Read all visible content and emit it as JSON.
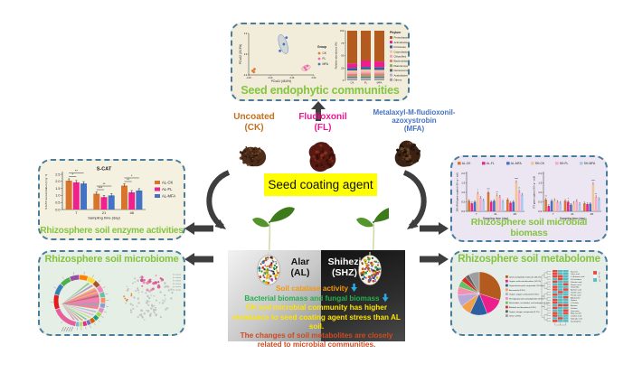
{
  "colors": {
    "title_green": "#85c440",
    "border_dash": "#4a7d9b",
    "down_arrow": "#29abe2",
    "arrow_dark": "#3e3e3e",
    "coating_bg": "#ffff00"
  },
  "panels": {
    "endophytic": {
      "title": "Seed endophytic communities"
    },
    "enzyme": {
      "title": "Rhizosphere soil enzyme activities"
    },
    "microbiome": {
      "title": "Rhizosphere soil microbiome"
    },
    "biomass": {
      "title": "Rhizosphere soil microbial biomass"
    },
    "metabolome": {
      "title": "Rhizosphere soil metabolome"
    }
  },
  "seeds": [
    {
      "label_lines": [
        "Uncoated",
        "(CK)"
      ],
      "color": "#c4701f"
    },
    {
      "label_lines": [
        "Fludioxonil",
        "(FL)"
      ],
      "color": "#ed1690"
    },
    {
      "label_lines": [
        "Metalaxyl-M-fludioxonil-",
        "azoxystrobin",
        "(MFA)"
      ],
      "color": "#4472c4"
    }
  ],
  "center_label": "Seed coating agent",
  "sites": {
    "left": {
      "name": "Alar",
      "abbr": "(AL)"
    },
    "right": {
      "name": "Shihezi",
      "abbr": "(SHZ)"
    }
  },
  "findings": [
    {
      "text": "Soil catalase activity",
      "color": "#f2990f",
      "down_arrow": true
    },
    {
      "text": "Bacterial biomass and fungal biomass",
      "color": "#21b14b",
      "down_arrow": true
    },
    {
      "text": "SH soil microbial community has higher resistance to seed coating agent stress than AL soil.",
      "color": "#ffe400",
      "down_arrow": false
    },
    {
      "text": "The changes of soil metabolites are closely related to microbial communities.",
      "color": "#cf4a1f",
      "down_arrow": false
    }
  ],
  "chart_data": [
    {
      "id": "pcoa",
      "type": "scatter",
      "xlabel": "PCoA1 (45.6%)",
      "ylabel": "PCoA2 (20.3%)",
      "legend_title": "Group",
      "groups": [
        {
          "name": "CK",
          "color": "#e07b39",
          "points": [
            [
              0.06,
              0.1
            ],
            [
              0.09,
              0.14
            ],
            [
              0.08,
              0.07
            ]
          ]
        },
        {
          "name": "FL",
          "color": "#ef6aa8",
          "points": [
            [
              0.86,
              0.18
            ],
            [
              0.9,
              0.22
            ],
            [
              0.88,
              0.13
            ]
          ],
          "ellipse": {
            "cx": 0.88,
            "cy": 0.17,
            "rx": 0.07,
            "ry": 0.06,
            "rot": -20
          }
        },
        {
          "name": "MFA",
          "color": "#4472c4",
          "points": [
            [
              0.48,
              0.58
            ],
            [
              0.54,
              0.74
            ],
            [
              0.58,
              0.9
            ]
          ],
          "ellipse": {
            "cx": 0.53,
            "cy": 0.74,
            "rx": 0.06,
            "ry": 0.24,
            "rot": -18
          }
        }
      ]
    },
    {
      "id": "phylum",
      "type": "stacked-bar",
      "legend_title": "Phylum",
      "ylabel": "Relative abundance (%)",
      "ylim": [
        0,
        100
      ],
      "categories": [
        "CK",
        "FL",
        "MFA"
      ],
      "series": [
        {
          "name": "Proteobacteria",
          "color": "#b35a1f",
          "values": [
            66,
            60,
            62
          ]
        },
        {
          "name": "Actinobacteria",
          "color": "#ec1e8c",
          "values": [
            9,
            13,
            12
          ]
        },
        {
          "name": "Firmicutes",
          "color": "#2e5fa3",
          "values": [
            5,
            5,
            5
          ]
        },
        {
          "name": "Cyanobacteria",
          "color": "#f2c49b",
          "values": [
            4,
            5,
            4
          ]
        },
        {
          "name": "Chloroflexi",
          "color": "#f2a0c0",
          "values": [
            3,
            3,
            3
          ]
        },
        {
          "name": "Bacteroidota",
          "color": "#e88070",
          "values": [
            4,
            4,
            4
          ]
        },
        {
          "name": "Planctomycetota",
          "color": "#79b473",
          "values": [
            2,
            3,
            3
          ]
        },
        {
          "name": "Deinococcota",
          "color": "#5f6368",
          "values": [
            2,
            2,
            2
          ]
        },
        {
          "name": "Acidobacteriota",
          "color": "#b8a8d8",
          "values": [
            2,
            2,
            2
          ]
        },
        {
          "name": "Others",
          "color": "#9e9e9e",
          "values": [
            3,
            3,
            3
          ]
        }
      ]
    },
    {
      "id": "scat",
      "type": "bar",
      "title": "S-CAT",
      "xlabel": "Sampling time (day)",
      "ylabel": "S-CAT concentration (U g⁻¹)",
      "ylim": [
        0,
        2.5
      ],
      "yticks": [
        "0.0",
        "0.5",
        "1.0",
        "1.5",
        "2.0",
        "2.5"
      ],
      "categories": [
        "7",
        "21",
        "48"
      ],
      "series": [
        {
          "name": "AL-CK",
          "color": "#d9742c",
          "values": [
            2.05,
            1.12,
            1.7
          ]
        },
        {
          "name": "AL-FL",
          "color": "#f0218c",
          "values": [
            1.93,
            0.88,
            1.22
          ]
        },
        {
          "name": "AL-MFA",
          "color": "#4472c4",
          "values": [
            1.85,
            1.0,
            1.35
          ]
        }
      ],
      "sig": [
        {
          "inner": "*",
          "outer": "**"
        },
        {
          "inner": "***",
          "outer": "**"
        },
        {
          "inner": "**",
          "outer": "*"
        }
      ]
    },
    {
      "id": "b16s",
      "type": "bar",
      "xlabel": "Sampling time (day)",
      "ylabel": "16S rRNA gene copies (×10⁹ g⁻¹ soil)",
      "ylim": [
        0,
        2.0
      ],
      "yticks": [
        "0.0",
        "0.5",
        "1.0",
        "1.5",
        "2.0"
      ],
      "categories": [
        "7",
        "21",
        "48"
      ],
      "series": [
        {
          "name": "AL-CK",
          "color": "#d9742c",
          "values": [
            0.55,
            1.0,
            0.62
          ]
        },
        {
          "name": "AL-FL",
          "color": "#f0218c",
          "values": [
            0.42,
            0.5,
            0.45
          ]
        },
        {
          "name": "AL-MFA",
          "color": "#4472c4",
          "values": [
            0.5,
            0.55,
            0.5
          ]
        },
        {
          "name": "SH-CK",
          "color": "#f2c49b",
          "values": [
            0.95,
            0.85,
            1.55
          ]
        },
        {
          "name": "SH-FL",
          "color": "#f9a8cb",
          "values": [
            0.72,
            0.78,
            1.05
          ]
        },
        {
          "name": "SH-MFA",
          "color": "#a9c9ec",
          "values": [
            0.58,
            0.52,
            0.88
          ]
        }
      ],
      "marks": [
        {
          "g": 0,
          "s": 3,
          "t": "*"
        },
        {
          "g": 1,
          "s": 0,
          "t": "***"
        },
        {
          "g": 1,
          "s": 3,
          "t": "**"
        },
        {
          "g": 2,
          "s": 3,
          "t": "****"
        },
        {
          "g": 2,
          "s": 4,
          "t": "**"
        }
      ]
    },
    {
      "id": "its",
      "type": "bar",
      "xlabel": "Sampling time (day)",
      "ylabel": "ITS gene copies (×10⁸ g⁻¹ soil)",
      "ylim": [
        0,
        2.0
      ],
      "yticks": [
        "0.0",
        "0.5",
        "1.0",
        "1.5",
        "2.0"
      ],
      "categories": [
        "7",
        "21",
        "48"
      ],
      "series": [
        {
          "name": "AL-CK",
          "color": "#d9742c",
          "values": [
            0.62,
            0.55,
            0.42
          ]
        },
        {
          "name": "AL-FL",
          "color": "#f0218c",
          "values": [
            0.28,
            0.5,
            0.38
          ]
        },
        {
          "name": "AL-MFA",
          "color": "#4472c4",
          "values": [
            0.55,
            0.35,
            0.4
          ]
        },
        {
          "name": "SH-CK",
          "color": "#f2c49b",
          "values": [
            0.6,
            0.45,
            1.45
          ]
        },
        {
          "name": "SH-FL",
          "color": "#f9a8cb",
          "values": [
            0.5,
            0.55,
            0.75
          ]
        },
        {
          "name": "SH-MFA",
          "color": "#a9c9ec",
          "values": [
            0.45,
            0.4,
            0.65
          ]
        }
      ],
      "marks": [
        {
          "g": 0,
          "s": 0,
          "t": "**"
        },
        {
          "g": 1,
          "s": 1,
          "t": "*"
        },
        {
          "g": 2,
          "s": 3,
          "t": "****"
        },
        {
          "g": 2,
          "s": 4,
          "t": "**"
        }
      ]
    },
    {
      "id": "pie",
      "type": "pie",
      "slices": [
        {
          "label": "Lipids and lipid-like molecules (30.2%)",
          "color": "#b35a1f",
          "value": 30
        },
        {
          "label": "Organic acids and derivatives (14.1%)",
          "color": "#ec1e8c",
          "value": 14
        },
        {
          "label": "Organoheterocyclic compounds (13.4%)",
          "color": "#2e5fa3",
          "value": 13
        },
        {
          "label": "Benzenoids (8.3%)",
          "color": "#f0a04b",
          "value": 8
        },
        {
          "label": "Organic oxygen compounds (9.0%)",
          "color": "#b8a8d8",
          "value": 9
        },
        {
          "label": "Phenylpropanoids and polyketides (5.8%)",
          "color": "#f48fb1",
          "value": 6
        },
        {
          "label": "Nucleosides, nucleotides, and analogues (4.7%)",
          "color": "#6abf69",
          "value": 5
        },
        {
          "label": "Alkaloids and derivatives (3.6%)",
          "color": "#d93025",
          "value": 4
        },
        {
          "label": "Organic nitrogen compounds (3.1%)",
          "color": "#5f6368",
          "value": 3
        },
        {
          "label": "Others (7.8%)",
          "color": "#9e9e9e",
          "value": 8
        }
      ]
    },
    {
      "id": "heatmap",
      "type": "heatmap",
      "columns": [
        "CK",
        "FL",
        "MFA"
      ],
      "colors": {
        "R": "#e8453c",
        "B": "#56bcc2"
      },
      "scale_labels": [
        "2",
        "0",
        "-2"
      ],
      "rows": [
        {
          "label": "Sucrose",
          "cells": "RBB"
        },
        {
          "label": "Citric acid",
          "cells": "RBB"
        },
        {
          "label": "L-Glutamic acid",
          "cells": "RRB"
        },
        {
          "label": "D-Trehalose",
          "cells": "BRB"
        },
        {
          "label": "Palmitic acid",
          "cells": "RBB"
        },
        {
          "label": "Stearic acid",
          "cells": "BBR"
        },
        {
          "label": "Oleamide",
          "cells": "RBB"
        },
        {
          "label": "Azelaic acid",
          "cells": "RBR"
        },
        {
          "label": "Vanillic acid",
          "cells": "BRB"
        },
        {
          "label": "Ferulic acid",
          "cells": "RBB"
        },
        {
          "label": "Adenosine",
          "cells": "BBR"
        },
        {
          "label": "Uridine",
          "cells": "RBB"
        },
        {
          "label": "L-Proline",
          "cells": "RBB"
        },
        {
          "label": "Betaine",
          "cells": "BRR"
        },
        {
          "label": "Choline",
          "cells": "RBB"
        },
        {
          "label": "Quercetin",
          "cells": "BBR"
        },
        {
          "label": "Myo-inositol",
          "cells": "RBR"
        },
        {
          "label": "Linoleic acid",
          "cells": "RBB"
        },
        {
          "label": "Salicylic acid",
          "cells": "BRB"
        },
        {
          "label": "Kaempferol",
          "cells": "RBB"
        }
      ]
    }
  ]
}
